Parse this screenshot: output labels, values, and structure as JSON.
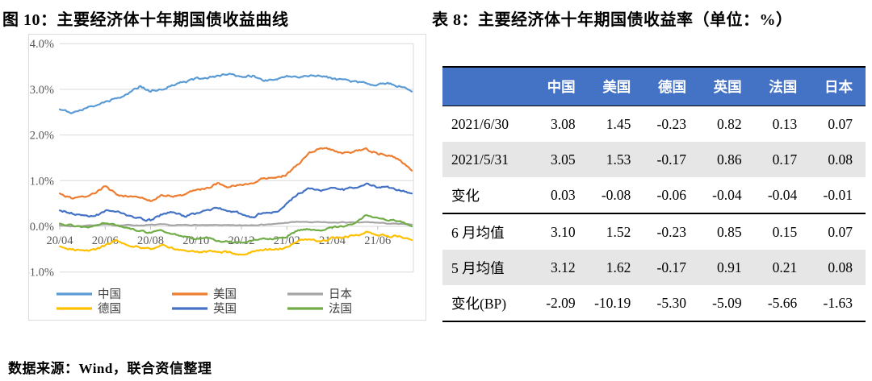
{
  "figure": {
    "title": "图 10：主要经济体十年期国债收益曲线"
  },
  "footer": {
    "source": "数据来源：Wind，联合资信整理"
  },
  "table": {
    "title": "表 8：主要经济体十年期国债收益率（单位：%）",
    "header_bg": "#4472C4",
    "shaded_bg": "#E7E6E6",
    "columns": [
      "",
      "中国",
      "美国",
      "德国",
      "英国",
      "法国",
      "日本"
    ],
    "rows": [
      {
        "label": "2021/6/30",
        "values": [
          "3.08",
          "1.45",
          "-0.23",
          "0.82",
          "0.13",
          "0.07"
        ],
        "shaded": false,
        "divider": false
      },
      {
        "label": "2021/5/31",
        "values": [
          "3.05",
          "1.53",
          "-0.17",
          "0.86",
          "0.17",
          "0.08"
        ],
        "shaded": true,
        "divider": false
      },
      {
        "label": "变化",
        "values": [
          "0.03",
          "-0.08",
          "-0.06",
          "-0.04",
          "-0.04",
          "-0.01"
        ],
        "shaded": false,
        "divider": true
      },
      {
        "label": "6 月均值",
        "values": [
          "3.10",
          "1.52",
          "-0.23",
          "0.85",
          "0.15",
          "0.07"
        ],
        "shaded": false,
        "divider": false
      },
      {
        "label": "5 月均值",
        "values": [
          "3.12",
          "1.62",
          "-0.17",
          "0.91",
          "0.21",
          "0.08"
        ],
        "shaded": true,
        "divider": false
      },
      {
        "label": "变化(BP)",
        "values": [
          "-2.09",
          "-10.19",
          "-5.30",
          "-5.09",
          "-5.66",
          "-1.63"
        ],
        "shaded": false,
        "divider": true
      }
    ]
  },
  "chart_data": {
    "type": "line",
    "title": "",
    "xlabel": "",
    "ylabel": "",
    "ylim": [
      -1.0,
      4.0
    ],
    "grid": true,
    "legend_position": "bottom",
    "axis_color": "#595959",
    "grid_color": "#d9d9d9",
    "ytick_labels": [
      "4.0%",
      "3.0%",
      "2.0%",
      "1.0%",
      "0.0%",
      "-1.0%"
    ],
    "ytick_values": [
      4.0,
      3.0,
      2.0,
      1.0,
      0.0,
      -1.0
    ],
    "xtick_labels": [
      "20/04",
      "20/06",
      "20/08",
      "20/10",
      "20/12",
      "21/02",
      "21/04",
      "21/06"
    ],
    "x_start": "2020/04",
    "x_end": "2021/07",
    "x_step_months": 0.5,
    "series": [
      {
        "name": "中国",
        "name_en": "china",
        "color": "#5B9BD5",
        "jitter": 0.022,
        "values": [
          2.56,
          2.5,
          2.55,
          2.64,
          2.72,
          2.8,
          2.92,
          3.06,
          2.96,
          3.02,
          3.1,
          3.16,
          3.22,
          3.25,
          3.3,
          3.33,
          3.28,
          3.3,
          3.17,
          3.24,
          3.28,
          3.25,
          3.3,
          3.28,
          3.24,
          3.2,
          3.16,
          3.12,
          3.1,
          3.12,
          3.06,
          2.95
        ]
      },
      {
        "name": "美国",
        "name_en": "usa",
        "color": "#ED7D31",
        "jitter": 0.02,
        "values": [
          0.72,
          0.62,
          0.66,
          0.7,
          0.88,
          0.7,
          0.66,
          0.64,
          0.56,
          0.7,
          0.66,
          0.7,
          0.78,
          0.84,
          0.95,
          0.86,
          0.92,
          0.94,
          1.08,
          1.04,
          1.14,
          1.36,
          1.6,
          1.72,
          1.66,
          1.6,
          1.64,
          1.68,
          1.6,
          1.56,
          1.46,
          1.22
        ]
      },
      {
        "name": "日本",
        "name_en": "japan",
        "color": "#A5A5A5",
        "jitter": 0.007,
        "values": [
          0.02,
          0.0,
          0.01,
          0.03,
          0.04,
          0.02,
          0.03,
          0.02,
          0.03,
          0.04,
          0.02,
          0.03,
          0.03,
          0.02,
          0.03,
          0.02,
          0.02,
          0.03,
          0.04,
          0.05,
          0.08,
          0.1,
          0.09,
          0.09,
          0.08,
          0.09,
          0.08,
          0.09,
          0.08,
          0.06,
          0.05,
          0.04
        ]
      },
      {
        "name": "德国",
        "name_en": "germany",
        "color": "#FFC000",
        "jitter": 0.02,
        "values": [
          -0.44,
          -0.48,
          -0.55,
          -0.52,
          -0.42,
          -0.3,
          -0.42,
          -0.46,
          -0.5,
          -0.4,
          -0.48,
          -0.52,
          -0.58,
          -0.56,
          -0.56,
          -0.58,
          -0.62,
          -0.55,
          -0.52,
          -0.5,
          -0.46,
          -0.32,
          -0.3,
          -0.34,
          -0.26,
          -0.24,
          -0.2,
          -0.14,
          -0.18,
          -0.22,
          -0.2,
          -0.3
        ]
      },
      {
        "name": "英国",
        "name_en": "uk",
        "color": "#4472C4",
        "jitter": 0.02,
        "values": [
          0.35,
          0.3,
          0.24,
          0.22,
          0.33,
          0.35,
          0.22,
          0.18,
          0.14,
          0.26,
          0.32,
          0.22,
          0.28,
          0.36,
          0.4,
          0.32,
          0.28,
          0.2,
          0.32,
          0.3,
          0.48,
          0.72,
          0.82,
          0.78,
          0.84,
          0.8,
          0.86,
          0.94,
          0.86,
          0.84,
          0.78,
          0.72
        ]
      },
      {
        "name": "法国",
        "name_en": "france",
        "color": "#70AD47",
        "jitter": 0.015,
        "values": [
          0.06,
          0.02,
          -0.02,
          0.0,
          0.08,
          0.02,
          -0.05,
          -0.1,
          -0.14,
          -0.1,
          -0.16,
          -0.22,
          -0.28,
          -0.26,
          -0.32,
          -0.34,
          -0.36,
          -0.3,
          -0.28,
          -0.26,
          -0.22,
          -0.08,
          -0.06,
          -0.1,
          -0.02,
          0.0,
          0.08,
          0.24,
          0.18,
          0.14,
          0.12,
          0.0
        ]
      }
    ],
    "draw_order": [
      "japan",
      "germany",
      "france",
      "uk",
      "usa",
      "china"
    ],
    "legend_rows": [
      [
        "中国",
        "美国",
        "日本"
      ],
      [
        "德国",
        "英国",
        "法国"
      ]
    ]
  }
}
